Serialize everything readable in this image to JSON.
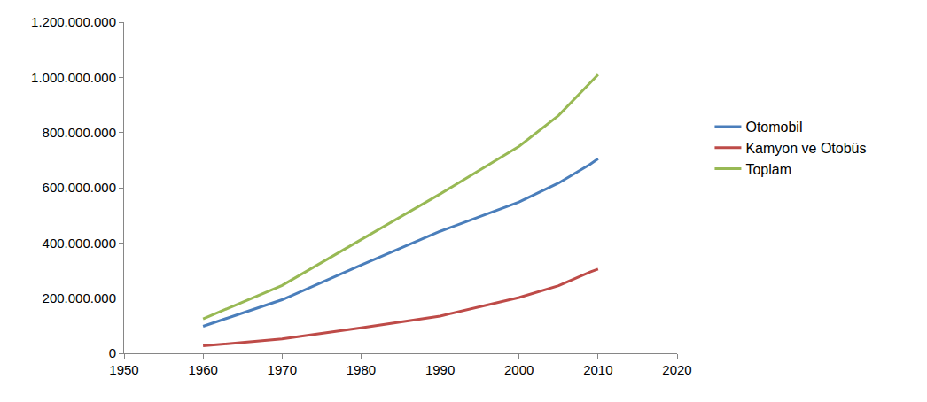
{
  "chart_data": {
    "type": "line",
    "x": [
      1960,
      1970,
      1980,
      1990,
      2000,
      2005,
      2009,
      2010
    ],
    "series": [
      {
        "name": "Otomobil",
        "color": "#4a7ebb",
        "values": [
          98000000,
          194000000,
          320000000,
          442000000,
          548000000,
          617000000,
          685000000,
          705000000
        ]
      },
      {
        "name": "Kamyon ve Otobüs",
        "color": "#be4b48",
        "values": [
          27000000,
          52000000,
          92000000,
          135000000,
          202000000,
          245000000,
          295000000,
          305000000
        ]
      },
      {
        "name": "Toplam",
        "color": "#98b954",
        "values": [
          125000000,
          246000000,
          412000000,
          577000000,
          750000000,
          862000000,
          980000000,
          1010000000
        ]
      }
    ],
    "xlim": [
      1950,
      2020
    ],
    "xticks": [
      1950,
      1960,
      1970,
      1980,
      1990,
      2000,
      2010,
      2020
    ],
    "ylim": [
      0,
      1200000000
    ],
    "yticks": [
      0,
      {
        "value": 200000000,
        "label": "200.000.000"
      },
      {
        "value": 400000000,
        "label": "400.000.000"
      },
      {
        "value": 600000000,
        "label": "600.000.000"
      },
      {
        "value": 800000000,
        "label": "800.000.000"
      },
      {
        "value": 1000000000,
        "label": "1.000.000.000"
      },
      {
        "value": 1200000000,
        "label": "1.200.000.000"
      }
    ],
    "grid": false,
    "legend": "right"
  }
}
